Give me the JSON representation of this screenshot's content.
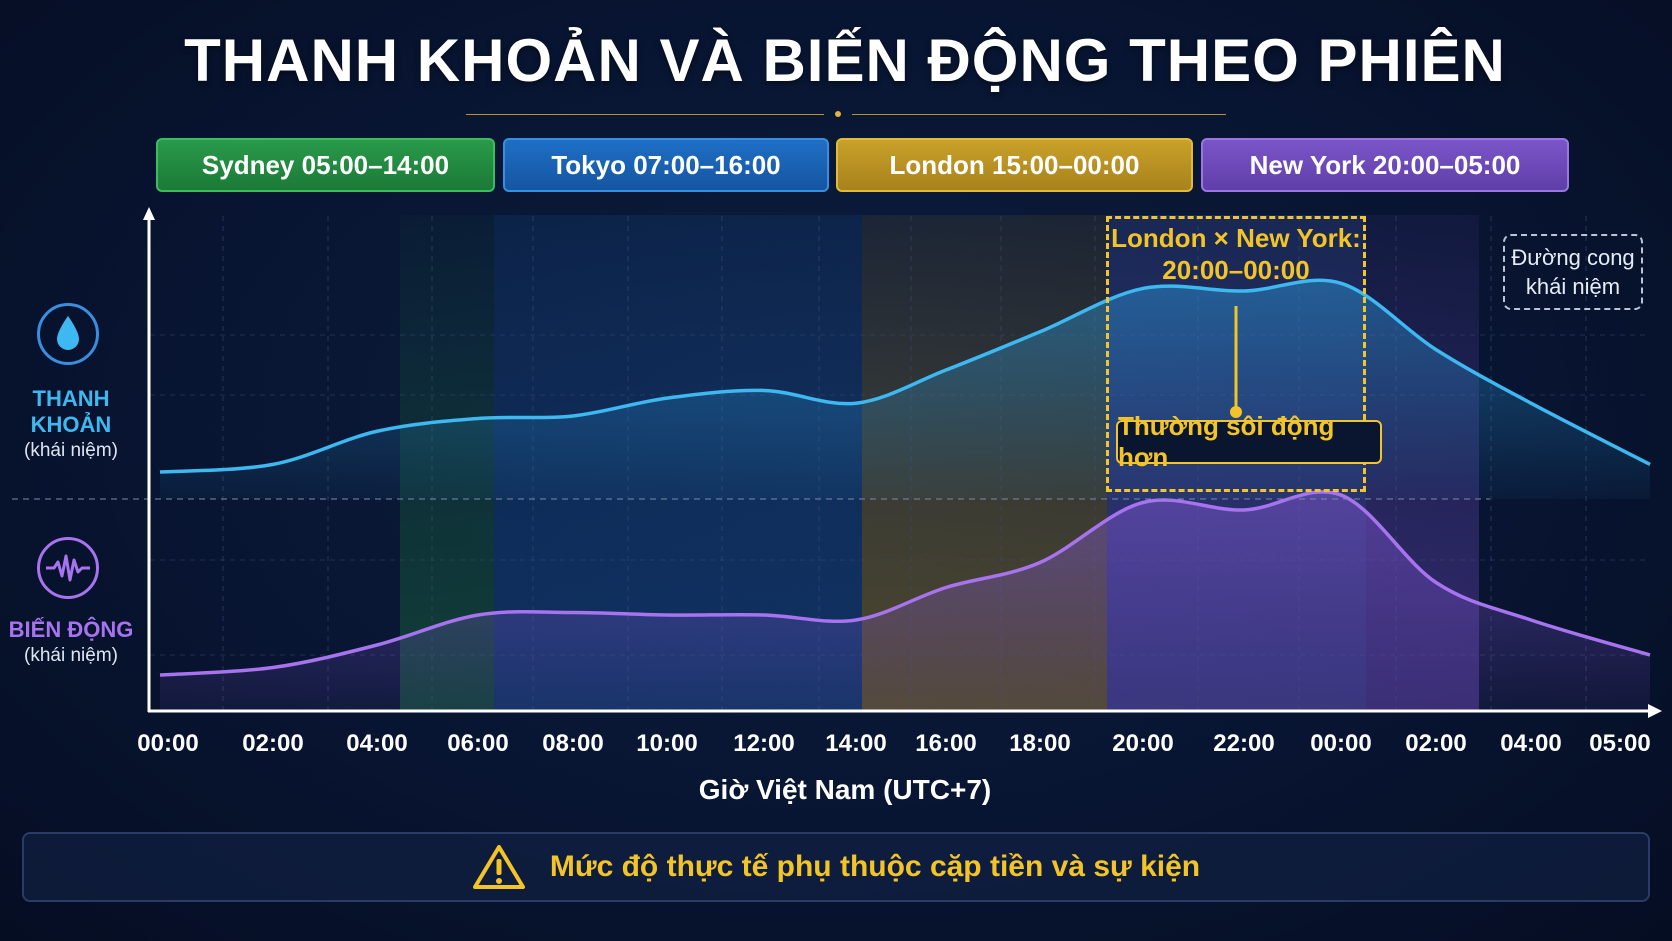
{
  "title": "THANH KHOẢN VÀ BIẾN ĐỘNG THEO PHIÊN",
  "sessions": [
    {
      "key": "sydney",
      "label": "Sydney 05:00–14:00"
    },
    {
      "key": "tokyo",
      "label": "Tokyo 07:00–16:00"
    },
    {
      "key": "london",
      "label": "London 15:00–00:00"
    },
    {
      "key": "ny",
      "label": "New York 20:00–05:00"
    }
  ],
  "labels": {
    "liquidity_name": "THANH KHOẢN",
    "liquidity_sub": "(khái niệm)",
    "volatility_name": "BIẾN ĐỘNG",
    "volatility_sub": "(khái niệm)",
    "overlap_line1": "London × New York:",
    "overlap_line2": "20:00–00:00",
    "callout": "Thường sôi động hơn",
    "note_line1": "Đường cong",
    "note_line2": "khái niệm",
    "footer": "Mức độ thực tế phụ thuộc cặp tiền và sự kiện"
  },
  "colors": {
    "liquidity": "#3db8f0",
    "volatility": "#a773ee",
    "sydney": "#1f8a3f",
    "tokyo": "#1a61b3",
    "london": "#b89020",
    "ny": "#6a47b8",
    "accent": "#f3c428"
  },
  "chart_data": {
    "type": "area",
    "xlabel": "Giờ Việt Nam (UTC+7)",
    "x_ticks": [
      "00:00",
      "02:00",
      "04:00",
      "06:00",
      "08:00",
      "10:00",
      "12:00",
      "14:00",
      "16:00",
      "18:00",
      "20:00",
      "22:00",
      "00:00",
      "02:00",
      "04:00",
      "05:00"
    ],
    "ylim": [
      0,
      100
    ],
    "series": [
      {
        "name": "THANH KHOẢN",
        "values": [
          9,
          12,
          25,
          30,
          31,
          38,
          41,
          36,
          49,
          64,
          81,
          80,
          83,
          57,
          36,
          12
        ]
      },
      {
        "name": "BIẾN ĐỘNG",
        "values": [
          6,
          9,
          18,
          30,
          31,
          30,
          30,
          28,
          41,
          51,
          75,
          72,
          78,
          43,
          28,
          14
        ]
      }
    ]
  }
}
